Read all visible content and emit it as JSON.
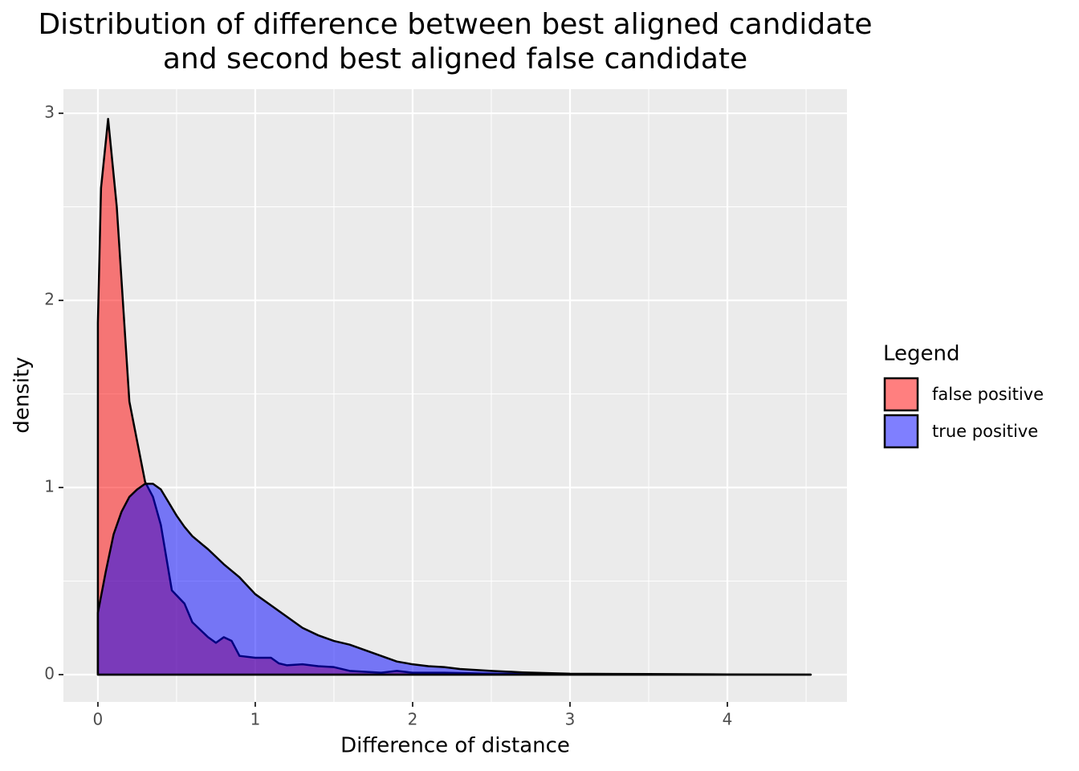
{
  "chart_data": {
    "type": "density",
    "title": [
      "Distribution of difference between best aligned candidate",
      "and second best aligned false candidate"
    ],
    "x_label": "Difference of distance",
    "y_label": "density",
    "legend_title": "Legend",
    "legend_position": "right",
    "alpha": 0.5,
    "grid": true,
    "xlim": [
      -0.219,
      4.76
    ],
    "ylim": [
      -0.146,
      3.129
    ],
    "xticks": [
      0,
      1,
      2,
      3,
      4
    ],
    "yticks": [
      0,
      1,
      2,
      3
    ],
    "xminor": [
      0.5,
      1.5,
      2.5,
      3.5,
      4.5
    ],
    "yminor": [
      0.5,
      1.5,
      2.5
    ],
    "series": [
      {
        "name": "false positive",
        "color": "#FF0000",
        "x": [
          0,
          0.02,
          0.065,
          0.12,
          0.2,
          0.3,
          0.35,
          0.4,
          0.47,
          0.55,
          0.6,
          0.7,
          0.75,
          0.8,
          0.85,
          0.9,
          1.0,
          1.1,
          1.15,
          1.2,
          1.3,
          1.4,
          1.5,
          1.6,
          1.8,
          1.9,
          2.0,
          2.2,
          2.5,
          3.0,
          3.5,
          4.53
        ],
        "values": [
          1.88,
          2.6,
          2.97,
          2.5,
          1.46,
          1.03,
          0.95,
          0.8,
          0.45,
          0.38,
          0.28,
          0.2,
          0.17,
          0.2,
          0.18,
          0.1,
          0.09,
          0.09,
          0.06,
          0.05,
          0.055,
          0.045,
          0.04,
          0.02,
          0.01,
          0.02,
          0.01,
          0.01,
          0.005,
          0.002,
          0,
          0
        ]
      },
      {
        "name": "true positive",
        "color": "#0000FF",
        "x": [
          0,
          0.05,
          0.1,
          0.15,
          0.2,
          0.25,
          0.3,
          0.35,
          0.4,
          0.45,
          0.5,
          0.55,
          0.6,
          0.7,
          0.8,
          0.9,
          1.0,
          1.1,
          1.2,
          1.3,
          1.4,
          1.5,
          1.6,
          1.7,
          1.8,
          1.9,
          2.0,
          2.1,
          2.2,
          2.3,
          2.5,
          2.7,
          3.0,
          3.5,
          4.0,
          4.53
        ],
        "values": [
          0.33,
          0.55,
          0.75,
          0.87,
          0.95,
          0.99,
          1.02,
          1.02,
          0.99,
          0.92,
          0.85,
          0.79,
          0.74,
          0.67,
          0.59,
          0.52,
          0.43,
          0.37,
          0.31,
          0.25,
          0.21,
          0.18,
          0.16,
          0.13,
          0.1,
          0.07,
          0.055,
          0.045,
          0.04,
          0.03,
          0.02,
          0.012,
          0.005,
          0.003,
          0.001,
          0
        ]
      }
    ]
  }
}
